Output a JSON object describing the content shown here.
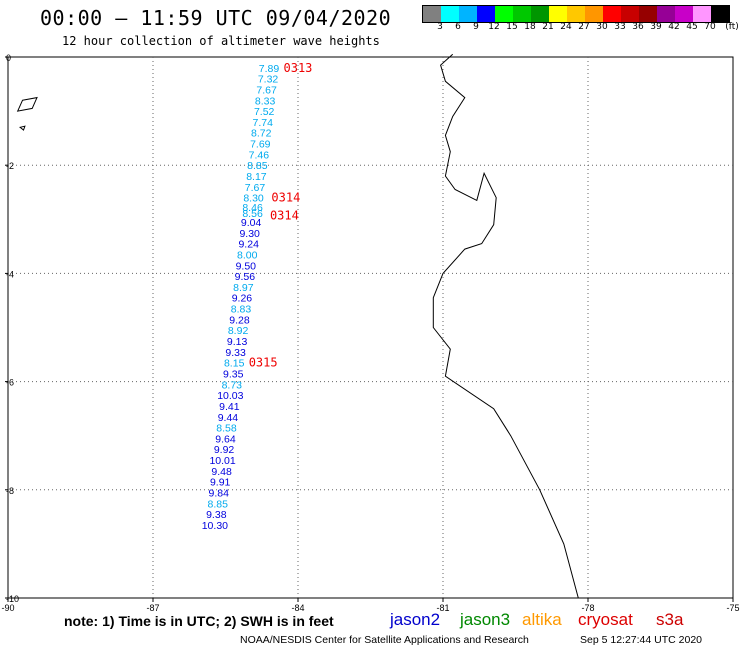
{
  "header": {
    "title": "00:00 — 11:59 UTC 09/04/2020",
    "subtitle": "12 hour collection of altimeter wave heights"
  },
  "color_scale": {
    "colors": [
      "#808080",
      "#00ffff",
      "#00b4ff",
      "#0000ff",
      "#00ff00",
      "#00c800",
      "#009600",
      "#ffff00",
      "#ffc800",
      "#ff9600",
      "#ff0000",
      "#c80000",
      "#960000",
      "#960096",
      "#c800c8",
      "#ff96ff",
      "#000000"
    ],
    "labels": [
      "3",
      "6",
      "9",
      "12",
      "15",
      "18",
      "21",
      "24",
      "27",
      "30",
      "33",
      "36",
      "39",
      "42",
      "45",
      "70",
      "(ft)"
    ]
  },
  "map": {
    "lon_min": -90,
    "lon_max": -75,
    "lat_min": -10,
    "lat_max": 0,
    "x_ticks": [
      -90,
      -87,
      -84,
      -81,
      -78,
      -75
    ],
    "y_ticks": [
      0,
      -2,
      -4,
      -6,
      -8,
      -10
    ],
    "x_tick_labels": [
      "-90",
      "-87",
      "-84",
      "-81",
      "-78",
      "-75"
    ],
    "y_tick_labels": [
      "0",
      "-2",
      "-4",
      "-6",
      "-8",
      "-10"
    ],
    "grid": "dotted"
  },
  "observations": [
    {
      "value": "7.89",
      "lon": -84.6,
      "lat": -0.2,
      "sat": "altika-cyan"
    },
    {
      "value": "7.32",
      "lon": -84.62,
      "lat": -0.4,
      "sat": "altika-cyan"
    },
    {
      "value": "7.67",
      "lon": -84.65,
      "lat": -0.6,
      "sat": "altika-cyan"
    },
    {
      "value": "8.33",
      "lon": -84.68,
      "lat": -0.8,
      "sat": "altika-cyan"
    },
    {
      "value": "7.52",
      "lon": -84.7,
      "lat": -1.0,
      "sat": "altika-cyan"
    },
    {
      "value": "7.74",
      "lon": -84.73,
      "lat": -1.2,
      "sat": "altika-cyan"
    },
    {
      "value": "8.72",
      "lon": -84.76,
      "lat": -1.4,
      "sat": "altika-cyan"
    },
    {
      "value": "7.69",
      "lon": -84.78,
      "lat": -1.6,
      "sat": "altika-cyan"
    },
    {
      "value": "7.46",
      "lon": -84.81,
      "lat": -1.8,
      "sat": "altika-cyan"
    },
    {
      "value": "8.85",
      "lon": -84.84,
      "lat": -2.0,
      "sat": "altika-cyan"
    },
    {
      "value": "8.17",
      "lon": -84.86,
      "lat": -2.2,
      "sat": "altika-cyan"
    },
    {
      "value": "7.67",
      "lon": -84.89,
      "lat": -2.4,
      "sat": "altika-cyan"
    },
    {
      "value": "8.30",
      "lon": -84.92,
      "lat": -2.6,
      "sat": "altika-cyan"
    },
    {
      "value": "8.46",
      "lon": -84.94,
      "lat": -2.77,
      "sat": "altika-cyan"
    },
    {
      "value": "8.56",
      "lon": -84.94,
      "lat": -2.88,
      "sat": "altika-cyan"
    },
    {
      "value": "9.04",
      "lon": -84.97,
      "lat": -3.05,
      "sat": "jason-blue"
    },
    {
      "value": "9.30",
      "lon": -85.0,
      "lat": -3.25,
      "sat": "jason-blue"
    },
    {
      "value": "9.24",
      "lon": -85.02,
      "lat": -3.45,
      "sat": "jason-blue"
    },
    {
      "value": "8.00",
      "lon": -85.05,
      "lat": -3.65,
      "sat": "altika-cyan"
    },
    {
      "value": "9.50",
      "lon": -85.08,
      "lat": -3.85,
      "sat": "jason-blue"
    },
    {
      "value": "9.56",
      "lon": -85.1,
      "lat": -4.05,
      "sat": "jason-blue"
    },
    {
      "value": "8.97",
      "lon": -85.13,
      "lat": -4.25,
      "sat": "altika-cyan"
    },
    {
      "value": "9.26",
      "lon": -85.16,
      "lat": -4.45,
      "sat": "jason-blue"
    },
    {
      "value": "8.83",
      "lon": -85.18,
      "lat": -4.65,
      "sat": "altika-cyan"
    },
    {
      "value": "9.28",
      "lon": -85.21,
      "lat": -4.85,
      "sat": "jason-blue"
    },
    {
      "value": "8.92",
      "lon": -85.24,
      "lat": -5.05,
      "sat": "altika-cyan"
    },
    {
      "value": "9.13",
      "lon": -85.26,
      "lat": -5.25,
      "sat": "jason-blue"
    },
    {
      "value": "9.33",
      "lon": -85.29,
      "lat": -5.45,
      "sat": "jason-blue"
    },
    {
      "value": "8.15",
      "lon": -85.32,
      "lat": -5.65,
      "sat": "altika-cyan"
    },
    {
      "value": "9.35",
      "lon": -85.34,
      "lat": -5.85,
      "sat": "jason-blue"
    },
    {
      "value": "8.73",
      "lon": -85.37,
      "lat": -6.05,
      "sat": "altika-cyan"
    },
    {
      "value": "10.03",
      "lon": -85.4,
      "lat": -6.25,
      "sat": "jason-blue"
    },
    {
      "value": "9.41",
      "lon": -85.42,
      "lat": -6.45,
      "sat": "jason-blue"
    },
    {
      "value": "9.44",
      "lon": -85.45,
      "lat": -6.65,
      "sat": "jason-blue"
    },
    {
      "value": "8.58",
      "lon": -85.48,
      "lat": -6.85,
      "sat": "altika-cyan"
    },
    {
      "value": "9.64",
      "lon": -85.5,
      "lat": -7.05,
      "sat": "jason-blue"
    },
    {
      "value": "9.92",
      "lon": -85.53,
      "lat": -7.25,
      "sat": "jason-blue"
    },
    {
      "value": "10.01",
      "lon": -85.56,
      "lat": -7.45,
      "sat": "jason-blue"
    },
    {
      "value": "9.48",
      "lon": -85.58,
      "lat": -7.65,
      "sat": "jason-blue"
    },
    {
      "value": "9.91",
      "lon": -85.61,
      "lat": -7.85,
      "sat": "jason-blue"
    },
    {
      "value": "9.84",
      "lon": -85.64,
      "lat": -8.05,
      "sat": "jason-blue"
    },
    {
      "value": "8.85",
      "lon": -85.66,
      "lat": -8.25,
      "sat": "altika-cyan"
    },
    {
      "value": "9.38",
      "lon": -85.69,
      "lat": -8.45,
      "sat": "jason-blue"
    },
    {
      "value": "10.30",
      "lon": -85.72,
      "lat": -8.65,
      "sat": "jason-blue"
    }
  ],
  "time_markers": [
    {
      "label": "0313",
      "lon": -84.3,
      "lat": -0.2
    },
    {
      "label": "0314",
      "lon": -84.55,
      "lat": -2.6
    },
    {
      "label": "0314",
      "lon": -84.58,
      "lat": -2.93
    },
    {
      "label": "0315",
      "lon": -85.02,
      "lat": -5.65
    }
  ],
  "coastline": [
    [
      -80.8,
      0.05
    ],
    [
      -81.05,
      -0.15
    ],
    [
      -80.95,
      -0.45
    ],
    [
      -80.55,
      -0.75
    ],
    [
      -80.8,
      -1.1
    ],
    [
      -80.95,
      -1.45
    ],
    [
      -80.85,
      -1.75
    ],
    [
      -80.95,
      -2.2
    ],
    [
      -80.75,
      -2.45
    ],
    [
      -80.3,
      -2.65
    ],
    [
      -80.15,
      -2.15
    ],
    [
      -79.9,
      -2.6
    ],
    [
      -79.95,
      -3.1
    ],
    [
      -80.2,
      -3.45
    ],
    [
      -80.55,
      -3.55
    ],
    [
      -81.0,
      -4.0
    ],
    [
      -81.2,
      -4.45
    ],
    [
      -81.2,
      -5.0
    ],
    [
      -80.85,
      -5.4
    ],
    [
      -80.95,
      -5.9
    ],
    [
      -79.95,
      -6.5
    ],
    [
      -79.6,
      -7.0
    ],
    [
      -79.0,
      -8.0
    ],
    [
      -78.5,
      -9.0
    ],
    [
      -78.2,
      -10.0
    ]
  ],
  "islands": [
    [
      [
        -89.7,
        -0.8
      ],
      [
        -89.4,
        -0.75
      ],
      [
        -89.5,
        -0.95
      ],
      [
        -89.8,
        -1.0
      ]
    ],
    [
      [
        -89.75,
        -1.3
      ],
      [
        -89.65,
        -1.28
      ],
      [
        -89.68,
        -1.35
      ]
    ]
  ],
  "footer": {
    "note": "note: 1) Time is in UTC; 2) SWH is in feet",
    "satellites": [
      {
        "name": "jason2",
        "color": "#0000cc"
      },
      {
        "name": "jason3",
        "color": "#008800"
      },
      {
        "name": "altika",
        "color": "#ff9900"
      },
      {
        "name": "cryosat",
        "color": "#dd0000"
      },
      {
        "name": "s3a",
        "color": "#cc0000"
      }
    ],
    "credit": "NOAA/NESDIS Center for Satellite Applications and Research",
    "timestamp": "Sep  5 12:27:44 UTC 2020"
  }
}
